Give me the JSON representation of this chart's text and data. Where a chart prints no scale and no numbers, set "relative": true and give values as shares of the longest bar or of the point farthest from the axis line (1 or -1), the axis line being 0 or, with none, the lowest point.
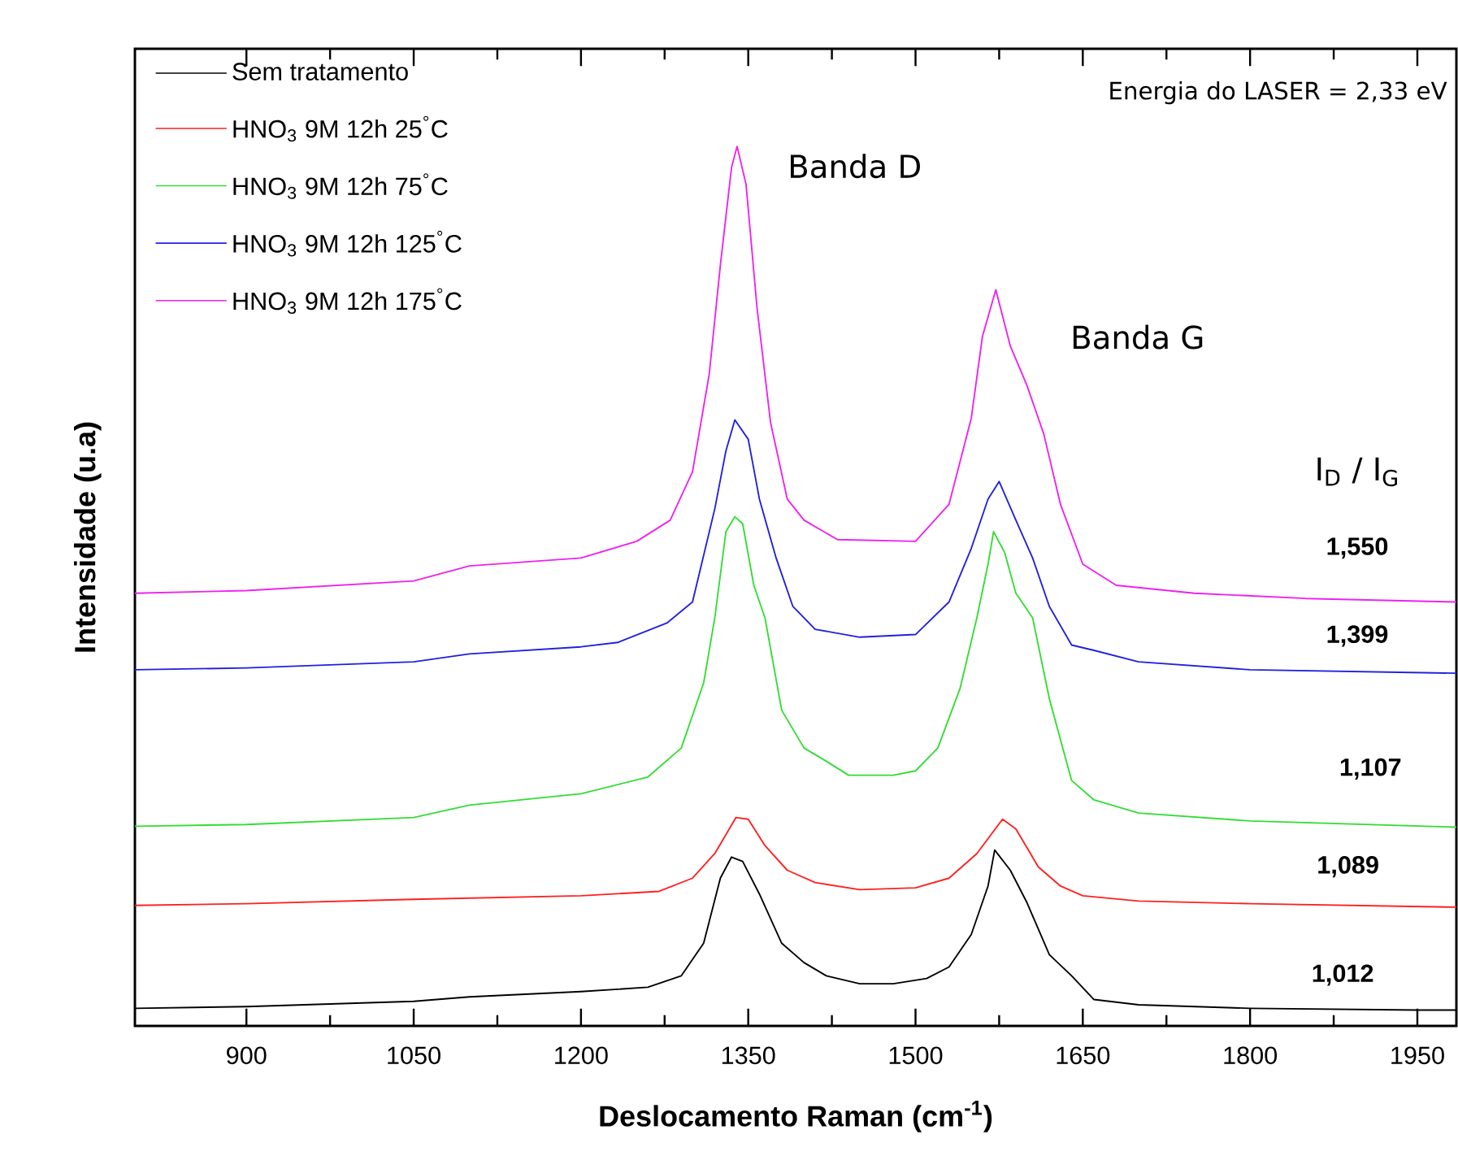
{
  "chart_data": {
    "type": "line",
    "relative": true,
    "xlabel": "Deslocamento Raman (cm$^{-1}$)",
    "ylabel": "Intensidade (u.a)",
    "xlim": [
      800,
      1985
    ],
    "xticks": [
      900,
      1050,
      1200,
      1350,
      1500,
      1650,
      1800,
      1950
    ],
    "legend": "top left",
    "annotations": [
      "Energia do LASER = 2,33 eV",
      "Banda D",
      "Banda G",
      "I$_{D}$ / I$_{G}$",
      "1,550",
      "1,399",
      "1,107",
      "1,089",
      "1,012"
    ],
    "x": [
      800,
      900,
      1050,
      1100,
      1200,
      1260,
      1290,
      1310,
      1325,
      1335,
      1345,
      1360,
      1380,
      1400,
      1420,
      1450,
      1480,
      1510,
      1530,
      1550,
      1565,
      1571,
      1585,
      1600,
      1620,
      1640,
      1660,
      1700,
      1800,
      1950,
      1985
    ],
    "series": [
      {
        "name": "Sem tratamento",
        "color": "#000000",
        "values": [
          0.02,
          0.022,
          0.028,
          0.033,
          0.039,
          0.044,
          0.057,
          0.094,
          0.168,
          0.192,
          0.187,
          0.15,
          0.094,
          0.072,
          0.057,
          0.048,
          0.048,
          0.054,
          0.067,
          0.104,
          0.159,
          0.2,
          0.177,
          0.14,
          0.081,
          0.057,
          0.03,
          0.024,
          0.02,
          0.018,
          0.018
        ]
      },
      {
        "name": "HNO$_{3}$ 9M 12h 25$^{°}$C",
        "color": "#ff2020",
        "x": [
          800,
          900,
          1050,
          1200,
          1270,
          1300,
          1320,
          1339,
          1350,
          1365,
          1385,
          1410,
          1450,
          1500,
          1530,
          1555,
          1578,
          1590,
          1610,
          1630,
          1650,
          1700,
          1800,
          1985
        ],
        "values": [
          0.137,
          0.139,
          0.144,
          0.148,
          0.153,
          0.168,
          0.196,
          0.237,
          0.235,
          0.205,
          0.177,
          0.163,
          0.155,
          0.157,
          0.168,
          0.196,
          0.235,
          0.224,
          0.181,
          0.159,
          0.148,
          0.142,
          0.139,
          0.135
        ]
      },
      {
        "name": "HNO$_{3}$ 9M 12h 75$^{°}$C",
        "color": "#33dd33",
        "x": [
          800,
          900,
          1050,
          1100,
          1200,
          1260,
          1290,
          1310,
          1320,
          1330,
          1338,
          1345,
          1355,
          1365,
          1380,
          1400,
          1420,
          1440,
          1480,
          1500,
          1520,
          1540,
          1555,
          1565,
          1570,
          1580,
          1590,
          1605,
          1620,
          1640,
          1660,
          1700,
          1800,
          1985
        ],
        "values": [
          0.227,
          0.229,
          0.237,
          0.251,
          0.264,
          0.283,
          0.316,
          0.39,
          0.464,
          0.562,
          0.579,
          0.571,
          0.501,
          0.464,
          0.359,
          0.316,
          0.301,
          0.285,
          0.285,
          0.29,
          0.316,
          0.384,
          0.464,
          0.525,
          0.562,
          0.538,
          0.492,
          0.464,
          0.372,
          0.279,
          0.257,
          0.242,
          0.233,
          0.226
        ]
      },
      {
        "name": "HNO$_{3}$ 9M 12h 125$^{°}$C",
        "color": "#2020e0",
        "x": [
          800,
          900,
          1050,
          1100,
          1200,
          1233,
          1277,
          1300,
          1320,
          1330,
          1338,
          1350,
          1360,
          1375,
          1390,
          1410,
          1450,
          1500,
          1530,
          1550,
          1565,
          1575,
          1590,
          1605,
          1620,
          1640,
          1660,
          1700,
          1800,
          1985
        ],
        "values": [
          0.405,
          0.407,
          0.414,
          0.423,
          0.431,
          0.436,
          0.458,
          0.482,
          0.588,
          0.654,
          0.689,
          0.667,
          0.599,
          0.532,
          0.477,
          0.451,
          0.442,
          0.445,
          0.482,
          0.543,
          0.599,
          0.619,
          0.575,
          0.532,
          0.477,
          0.433,
          0.427,
          0.414,
          0.405,
          0.401
        ]
      },
      {
        "name": "HNO$_{3}$ 9M 12h 175$^{°}$C",
        "color": "#ee22ee",
        "x": [
          800,
          900,
          1050,
          1100,
          1200,
          1250,
          1280,
          1300,
          1315,
          1325,
          1335,
          1340,
          1348,
          1358,
          1370,
          1385,
          1400,
          1430,
          1500,
          1530,
          1550,
          1560,
          1572,
          1585,
          1600,
          1615,
          1630,
          1650,
          1680,
          1750,
          1850,
          1985
        ],
        "values": [
          0.492,
          0.495,
          0.506,
          0.523,
          0.532,
          0.551,
          0.575,
          0.63,
          0.741,
          0.865,
          0.976,
          1.0,
          0.957,
          0.815,
          0.686,
          0.599,
          0.575,
          0.553,
          0.551,
          0.593,
          0.691,
          0.784,
          0.837,
          0.773,
          0.728,
          0.673,
          0.593,
          0.525,
          0.501,
          0.492,
          0.486,
          0.482
        ]
      }
    ]
  }
}
